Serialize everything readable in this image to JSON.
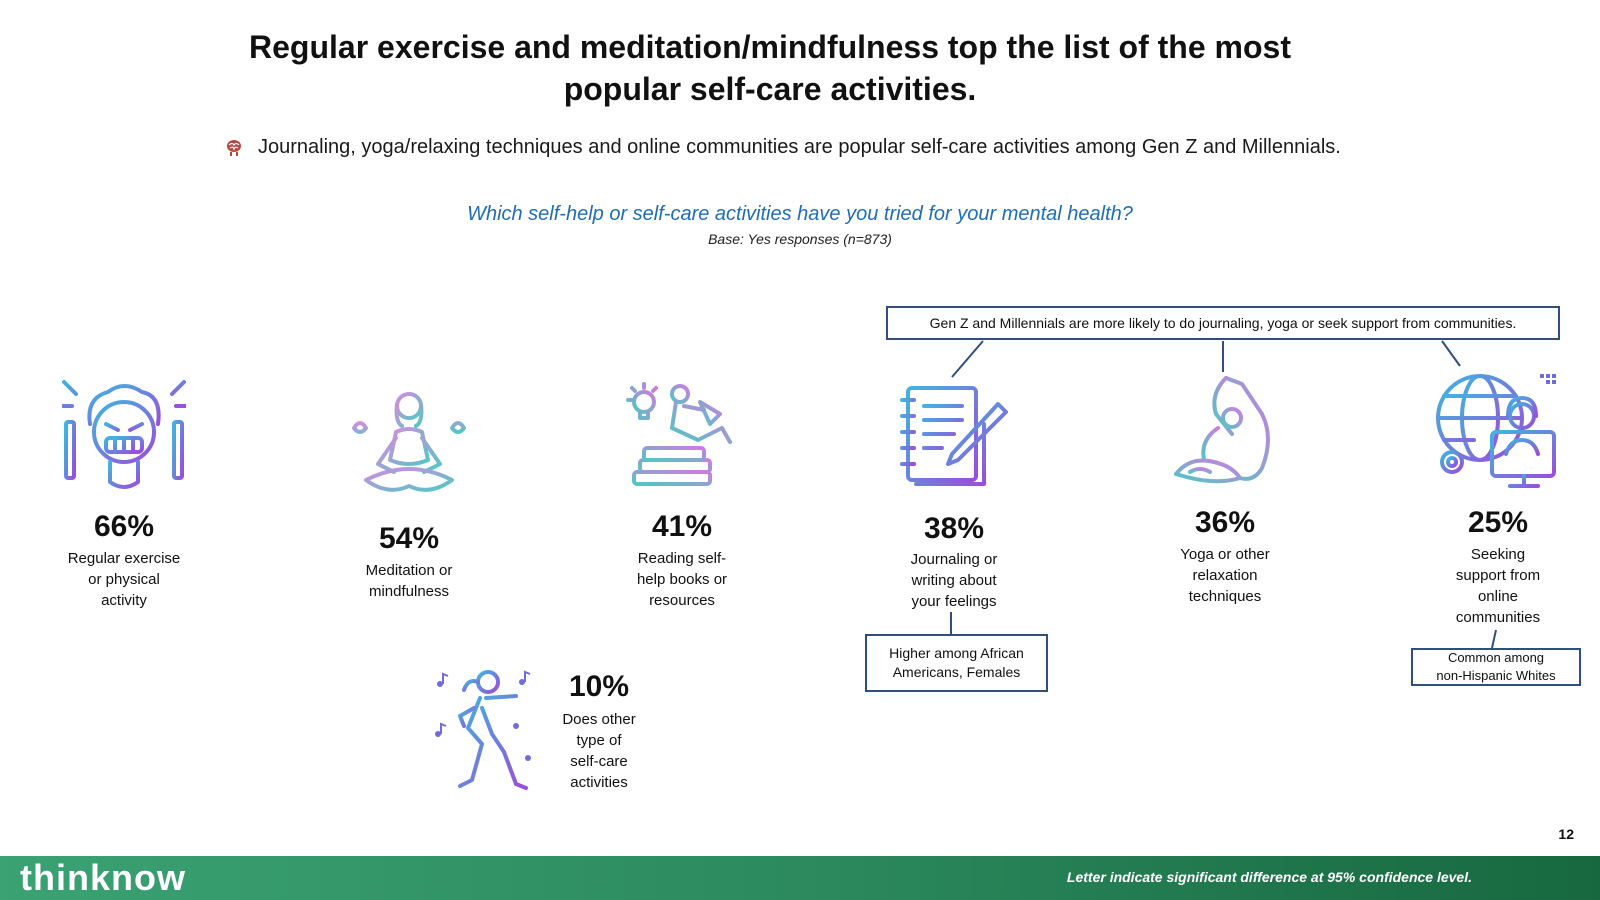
{
  "title": {
    "line1": "Regular exercise and meditation/mindfulness top the list of the most",
    "line2": "popular self-care activities."
  },
  "bullet": {
    "icon": "brain-icon",
    "text": "Journaling, yoga/relaxing techniques and online communities are popular self-care activities among Gen Z and Millennials."
  },
  "question": "Which self-help or self-care activities have you tried for your mental health?",
  "base": "Base: Yes responses (n=873)",
  "callouts": {
    "top": "Gen Z and Millennials are more likely to do journaling, yoga or seek support from communities.",
    "journaling": {
      "line1": "Higher among African",
      "line2": "Americans, Females"
    },
    "online": {
      "line1": "Common among",
      "line2": "non-Hispanic Whites"
    }
  },
  "activities": [
    {
      "icon": "exercise-weightlifting-icon",
      "percent": "66%",
      "lines": [
        "Regular exercise",
        "or physical",
        "activity"
      ]
    },
    {
      "icon": "meditation-icon",
      "percent": "54%",
      "lines": [
        "Meditation or",
        "mindfulness"
      ]
    },
    {
      "icon": "reading-books-icon",
      "percent": "41%",
      "lines": [
        "Reading self-",
        "help books or",
        "resources"
      ]
    },
    {
      "icon": "journal-notebook-icon",
      "percent": "38%",
      "lines": [
        "Journaling or",
        "writing about",
        "your feelings"
      ]
    },
    {
      "icon": "yoga-pose-icon",
      "percent": "36%",
      "lines": [
        "Yoga or other",
        "relaxation",
        "techniques"
      ]
    },
    {
      "icon": "online-support-globe-icon",
      "percent": "25%",
      "lines": [
        "Seeking",
        "support from",
        "online",
        "communities"
      ]
    },
    {
      "icon": "dancing-music-icon",
      "percent": "10%",
      "lines": [
        "Does other",
        "type of",
        "self-care",
        "activities"
      ]
    }
  ],
  "page_number": "12",
  "footer": {
    "brand": "thinknow",
    "note": "Letter indicate significant difference at 95% confidence level."
  },
  "colors": {
    "question_blue": "#1f6db5",
    "callout_border": "#2f4f7f",
    "footer_green": "#2c8a5e",
    "icon_gradient_start": "#3fb6e0",
    "icon_gradient_end": "#9b4ddb"
  }
}
